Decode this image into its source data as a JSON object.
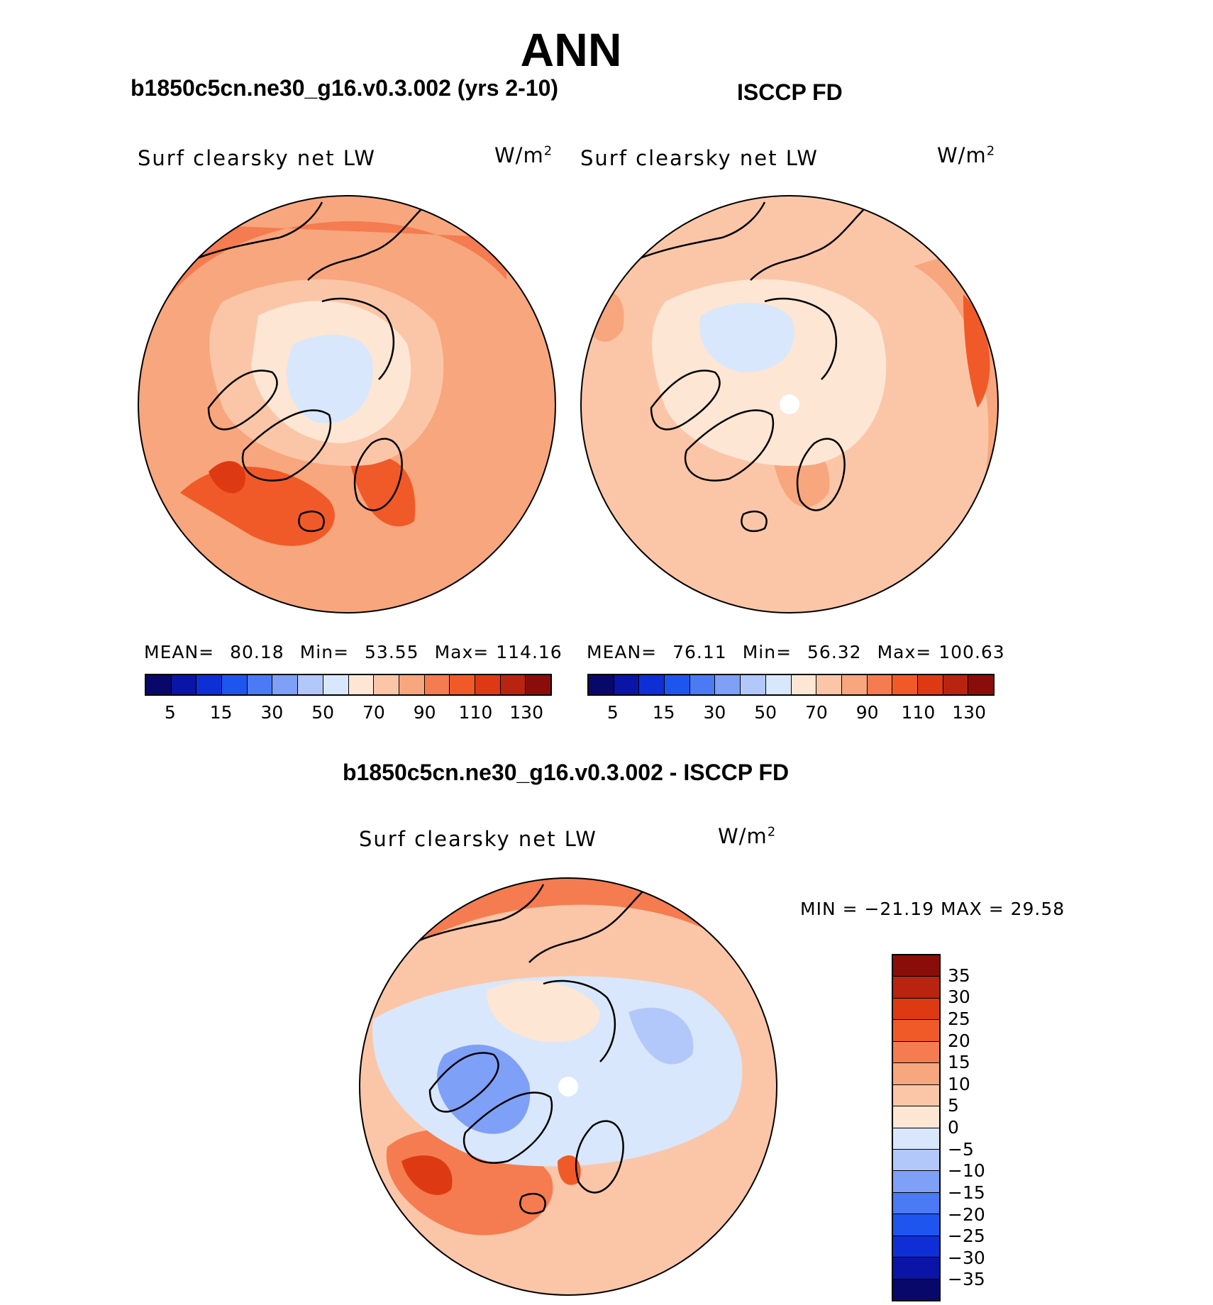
{
  "title": "ANN",
  "panels": {
    "model": {
      "title": "b1850c5cn.ne30_g16.v0.3.002 (yrs 2-10)",
      "variable": "Surf clearsky net LW",
      "units_base": "W/m",
      "units_exp": "2",
      "mean_label": "MEAN=",
      "mean": "80.18",
      "min_label": "Min=",
      "min": "53.55",
      "max_label": "Max=",
      "max": "114.16"
    },
    "obs": {
      "title": "ISCCP FD",
      "variable": "Surf clearsky net LW",
      "units_base": "W/m",
      "units_exp": "2",
      "mean_label": "MEAN=",
      "mean": "76.11",
      "min_label": "Min=",
      "min": "56.32",
      "max_label": "Max=",
      "max": "100.63"
    },
    "diff": {
      "title": "b1850c5cn.ne30_g16.v0.3.002 - ISCCP FD",
      "variable": "Surf clearsky net LW",
      "units_base": "W/m",
      "units_exp": "2",
      "minmax_text": "MIN = −21.19 MAX =  29.58"
    }
  },
  "colorbar_abs": {
    "colors": [
      "#08086b",
      "#0a14a6",
      "#0f2fd6",
      "#1f55ef",
      "#4a7bf5",
      "#7fa0f7",
      "#b3c8fa",
      "#d8e7fb",
      "#fde6d4",
      "#fbc6a8",
      "#f8a67d",
      "#f47c50",
      "#f05a28",
      "#dd3a14",
      "#b82410",
      "#8a0d0a"
    ],
    "ticks": [
      "5",
      "15",
      "30",
      "50",
      "70",
      "90",
      "110",
      "130"
    ]
  },
  "colorbar_diff": {
    "colors": [
      "#08086b",
      "#0a14a6",
      "#0f2fd6",
      "#1f55ef",
      "#4a7bf5",
      "#7fa0f7",
      "#b3c8fa",
      "#d8e7fb",
      "#fde6d4",
      "#fbc6a8",
      "#f8a67d",
      "#f47c50",
      "#f05a28",
      "#dd3a14",
      "#b82410",
      "#8a0d0a"
    ],
    "ticks": [
      "−35",
      "−30",
      "−25",
      "−20",
      "−15",
      "−10",
      "−5",
      "0",
      "5",
      "10",
      "15",
      "20",
      "25",
      "30",
      "35"
    ]
  }
}
